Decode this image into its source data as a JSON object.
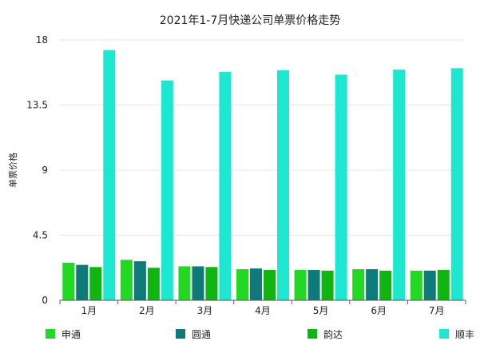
{
  "chart_data": {
    "type": "bar",
    "title": "2021年1-7月快递公司单票价格走势",
    "xlabel": "",
    "ylabel": "单票价格",
    "ylim": [
      0,
      18
    ],
    "yticks": [
      "0",
      "4.5",
      "9",
      "13.5",
      "18"
    ],
    "grid": true,
    "legend_position": "bottom",
    "categories": [
      "1月",
      "2月",
      "3月",
      "4月",
      "5月",
      "6月",
      "7月"
    ],
    "series": [
      {
        "name": "申通",
        "color": "#22d822",
        "values": [
          2.6,
          2.8,
          2.35,
          2.15,
          2.1,
          2.15,
          2.05
        ]
      },
      {
        "name": "圆通",
        "color": "#0e7a7a",
        "values": [
          2.45,
          2.7,
          2.35,
          2.2,
          2.1,
          2.15,
          2.05
        ]
      },
      {
        "name": "韵达",
        "color": "#11b511",
        "values": [
          2.3,
          2.25,
          2.3,
          2.1,
          2.05,
          2.05,
          2.1
        ]
      },
      {
        "name": "顺丰",
        "color": "#1de8cf",
        "values": [
          17.3,
          15.2,
          15.8,
          15.9,
          15.6,
          15.95,
          16.05
        ]
      }
    ]
  }
}
